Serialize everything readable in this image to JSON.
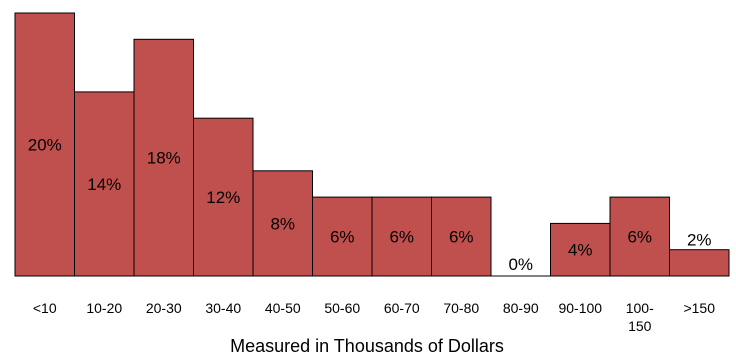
{
  "chart_data": {
    "type": "bar",
    "categories": [
      "<10",
      "10-20",
      "20-30",
      "30-40",
      "40-50",
      "50-60",
      "60-70",
      "70-80",
      "80-90",
      "90-100",
      "100-150",
      ">150"
    ],
    "values": [
      20,
      14,
      18,
      12,
      8,
      6,
      6,
      6,
      0,
      4,
      6,
      2
    ],
    "data_labels": [
      "20%",
      "14%",
      "18%",
      "12%",
      "8%",
      "6%",
      "6%",
      "6%",
      "0%",
      "4%",
      "6%",
      "2%"
    ],
    "xlabel": "Measured in Thousands of Dollars",
    "ylabel": "",
    "ylim": [
      0,
      20
    ],
    "grid": false,
    "legend": "none",
    "bar_color": "#c0504d",
    "bar_gap": 0
  }
}
